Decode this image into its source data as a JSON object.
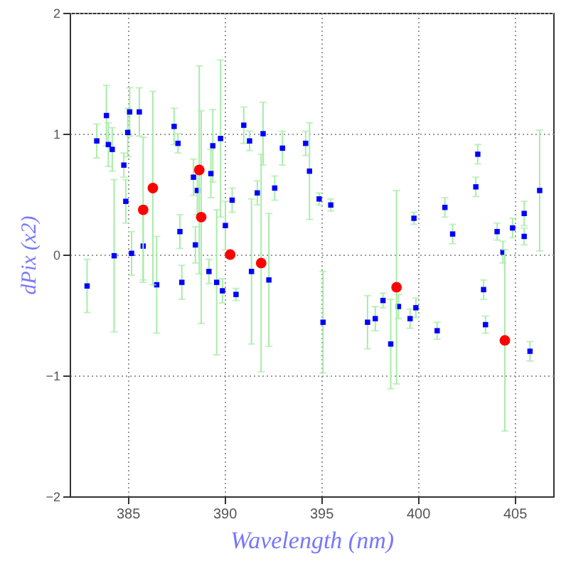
{
  "chart_data": {
    "type": "scatter",
    "xlabel": "Wavelength (nm)",
    "ylabel": "dPix (x2)",
    "xlim": [
      382,
      407
    ],
    "xticks": [
      385,
      390,
      395,
      400,
      405
    ],
    "ylim": [
      -2,
      2
    ],
    "yticks": [
      -2,
      -1,
      0,
      1,
      2
    ],
    "grid": true,
    "series": [
      {
        "color": "#0000ff",
        "marker": "square",
        "x": [
          382.9,
          383.4,
          383.9,
          384.0,
          384.2,
          384.3,
          384.8,
          384.9,
          385.0,
          385.1,
          385.2,
          385.6,
          385.8,
          386.5,
          387.4,
          387.6,
          387.7,
          387.8,
          388.4,
          388.5,
          388.6,
          389.2,
          389.3,
          389.4,
          389.6,
          389.8,
          389.9,
          390.05,
          390.4,
          390.6,
          391.0,
          391.3,
          391.4,
          391.7,
          392.0,
          392.3,
          392.6,
          393.0,
          394.2,
          394.4,
          394.9,
          395.1,
          395.5,
          397.4,
          397.8,
          398.2,
          398.6,
          399.0,
          399.6,
          399.8,
          399.9,
          401.0,
          401.4,
          401.8,
          403.0,
          403.1,
          403.4,
          403.5,
          404.1,
          404.4,
          404.9,
          405.5,
          405.5,
          405.8,
          406.3
        ],
        "values": [
          -0.26,
          0.94,
          1.15,
          0.91,
          0.87,
          -0.01,
          0.74,
          0.44,
          1.01,
          1.18,
          0.01,
          1.18,
          0.07,
          -0.25,
          1.06,
          0.92,
          0.19,
          -0.23,
          0.64,
          0.08,
          0.53,
          -0.14,
          0.67,
          0.9,
          -0.23,
          0.96,
          -0.3,
          0.24,
          0.45,
          -0.33,
          1.07,
          0.94,
          -0.14,
          0.51,
          1.0,
          -0.21,
          0.55,
          0.88,
          0.92,
          0.69,
          0.46,
          -0.56,
          0.41,
          -0.56,
          -0.53,
          -0.38,
          -0.74,
          -0.43,
          -0.53,
          0.3,
          -0.44,
          -0.63,
          0.39,
          0.17,
          0.56,
          0.83,
          -0.29,
          -0.58,
          0.19,
          0.02,
          0.22,
          0.15,
          0.34,
          -0.8,
          0.53
        ],
        "errors": [
          0.22,
          0.14,
          0.25,
          0.18,
          0.18,
          0.63,
          0.1,
          0.18,
          0.2,
          0.2,
          0.18,
          0.2,
          0.28,
          0.4,
          0.15,
          0.08,
          0.14,
          0.14,
          0.15,
          0.15,
          0.2,
          0.1,
          0.2,
          0.3,
          0.6,
          0.65,
          0.1,
          0.2,
          0.1,
          0.05,
          0.15,
          0.08,
          0.6,
          0.1,
          0.26,
          0.55,
          0.1,
          0.14,
          0.1,
          0.4,
          0.05,
          0.42,
          0.05,
          0.22,
          0.1,
          0.06,
          0.37,
          0.1,
          0.08,
          0.05,
          0.08,
          0.07,
          0.08,
          0.08,
          0.08,
          0.08,
          0.08,
          0.07,
          0.07,
          0.09,
          0.08,
          0.07,
          0.1,
          0.08,
          0.5
        ]
      },
      {
        "color": "#ff0000",
        "marker": "circle",
        "x": [
          385.8,
          386.3,
          388.7,
          388.8,
          390.3,
          391.9,
          398.9,
          404.5
        ],
        "values": [
          0.37,
          0.55,
          0.7,
          0.31,
          0.0,
          -0.07,
          -0.27,
          -0.71
        ],
        "errors": [
          0.6,
          0.8,
          0.86,
          0.88,
          null,
          0.9,
          0.8,
          0.75
        ]
      }
    ]
  }
}
